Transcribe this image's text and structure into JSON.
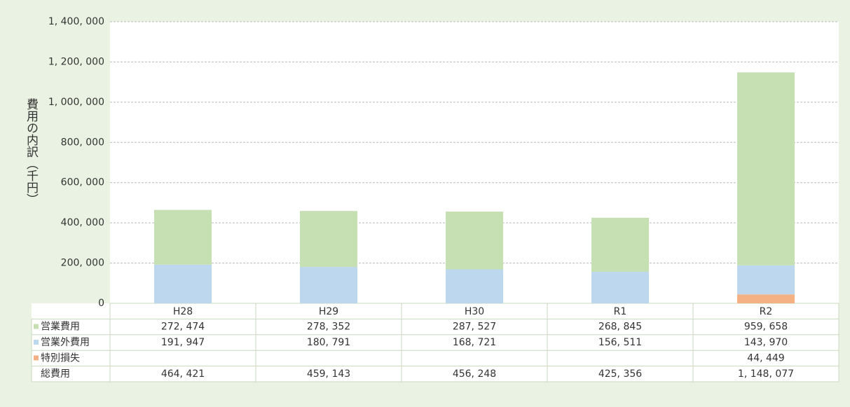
{
  "chart_data": {
    "type": "stacked_bar",
    "y_label": "費用の内訳（千円）",
    "categories": [
      "H28",
      "H29",
      "H30",
      "R1",
      "R2"
    ],
    "series": [
      {
        "name": "営業費用",
        "color": "#c6e0b4",
        "values": [
          272474,
          278352,
          287527,
          268845,
          959658
        ],
        "value_labels": [
          "272, 474",
          "278, 352",
          "287, 527",
          "268, 845",
          "959, 658"
        ]
      },
      {
        "name": "営業外費用",
        "color": "#bdd7ee",
        "values": [
          191947,
          180791,
          168721,
          156511,
          143970
        ],
        "value_labels": [
          "191, 947",
          "180, 791",
          "168, 721",
          "156, 511",
          "143, 970"
        ]
      },
      {
        "name": "特別損失",
        "color": "#f4b183",
        "values": [
          null,
          null,
          null,
          null,
          44449
        ],
        "value_labels": [
          null,
          null,
          null,
          null,
          "44, 449"
        ]
      }
    ],
    "totals": {
      "name": "総費用",
      "values": [
        464421,
        459143,
        456248,
        425356,
        1148077
      ],
      "value_labels": [
        "464, 421",
        "459, 143",
        "456, 248",
        "425, 356",
        "1, 148, 077"
      ]
    },
    "ylim": [
      0,
      1400000
    ],
    "yticks": [
      0,
      {
        "value": 200000,
        "label": "200, 000"
      },
      {
        "value": 400000,
        "label": "400, 000"
      },
      {
        "value": 600000,
        "label": "600, 000"
      },
      {
        "value": 800000,
        "label": "800, 000"
      },
      {
        "value": 1000000,
        "label": "1, 000, 000"
      },
      {
        "value": 1200000,
        "label": "1, 200, 000"
      },
      {
        "value": 1400000,
        "label": "1, 400, 000"
      }
    ],
    "grid": true
  }
}
